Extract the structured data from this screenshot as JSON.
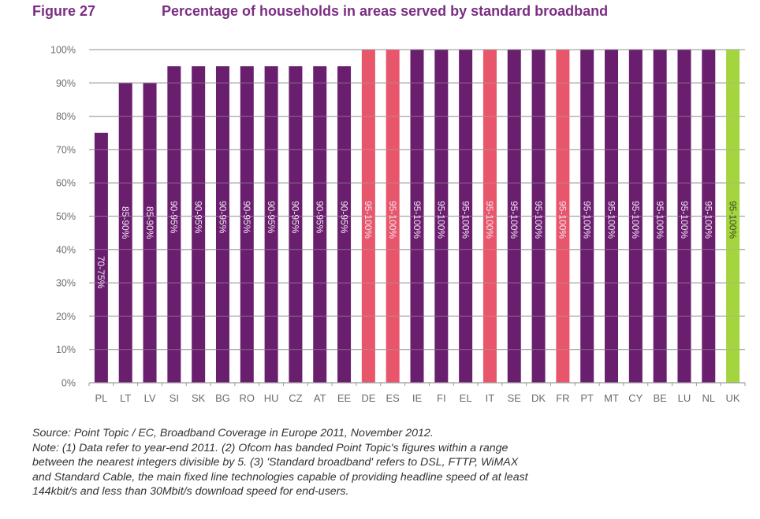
{
  "figure": {
    "number": "Figure 27",
    "title": "Percentage of households in areas served by standard broadband"
  },
  "colors": {
    "default": "#6a1f6e",
    "highlight": "#e8566b",
    "uk": "#a4d53f",
    "title": "#7b2d83",
    "grid": "#a8a8a8"
  },
  "chart_data": {
    "type": "bar",
    "title": "Percentage of households in areas served by standard broadband",
    "xlabel": "",
    "ylabel": "",
    "ylim": [
      0,
      100
    ],
    "grid": true,
    "yticks": [
      "0%",
      "10%",
      "20%",
      "30%",
      "40%",
      "50%",
      "60%",
      "70%",
      "80%",
      "90%",
      "100%"
    ],
    "categories": [
      "PL",
      "LT",
      "LV",
      "SI",
      "SK",
      "BG",
      "RO",
      "HU",
      "CZ",
      "AT",
      "EE",
      "DE",
      "ES",
      "IE",
      "FI",
      "EL",
      "IT",
      "SE",
      "DK",
      "FR",
      "PT",
      "MT",
      "CY",
      "BE",
      "LU",
      "NL",
      "UK"
    ],
    "values": [
      75,
      90,
      90,
      95,
      95,
      95,
      95,
      95,
      95,
      95,
      95,
      100,
      100,
      100,
      100,
      100,
      100,
      100,
      100,
      100,
      100,
      100,
      100,
      100,
      100,
      100,
      100
    ],
    "data_labels": [
      "70-75%",
      "85-90%",
      "85-90%",
      "90-95%",
      "90-95%",
      "90-95%",
      "90-95%",
      "90-95%",
      "90-95%",
      "90-95%",
      "90-95%",
      "95-100%",
      "95-100%",
      "95-100%",
      "95-100%",
      "95-100%",
      "95-100%",
      "95-100%",
      "95-100%",
      "95-100%",
      "95-100%",
      "95-100%",
      "95-100%",
      "95-100%",
      "95-100%",
      "95-100%",
      "95-100%"
    ],
    "bar_color_keys": [
      "default",
      "default",
      "default",
      "default",
      "default",
      "default",
      "default",
      "default",
      "default",
      "default",
      "default",
      "highlight",
      "highlight",
      "default",
      "default",
      "default",
      "highlight",
      "default",
      "default",
      "highlight",
      "default",
      "default",
      "default",
      "default",
      "default",
      "default",
      "uk"
    ]
  },
  "notes": {
    "lines": [
      "Source: Point Topic / EC, Broadband Coverage in Europe 2011, November 2012.",
      "Note: (1) Data refer to year-end 2011. (2) Ofcom has banded Point Topic's figures within a range",
      "between the nearest integers divisible by 5. (3) 'Standard broadband' refers to DSL, FTTP, WiMAX",
      "and Standard Cable, the main fixed line technologies capable of providing headline speed of at least",
      "144kbit/s and less than 30Mbit/s download speed for end-users."
    ]
  }
}
